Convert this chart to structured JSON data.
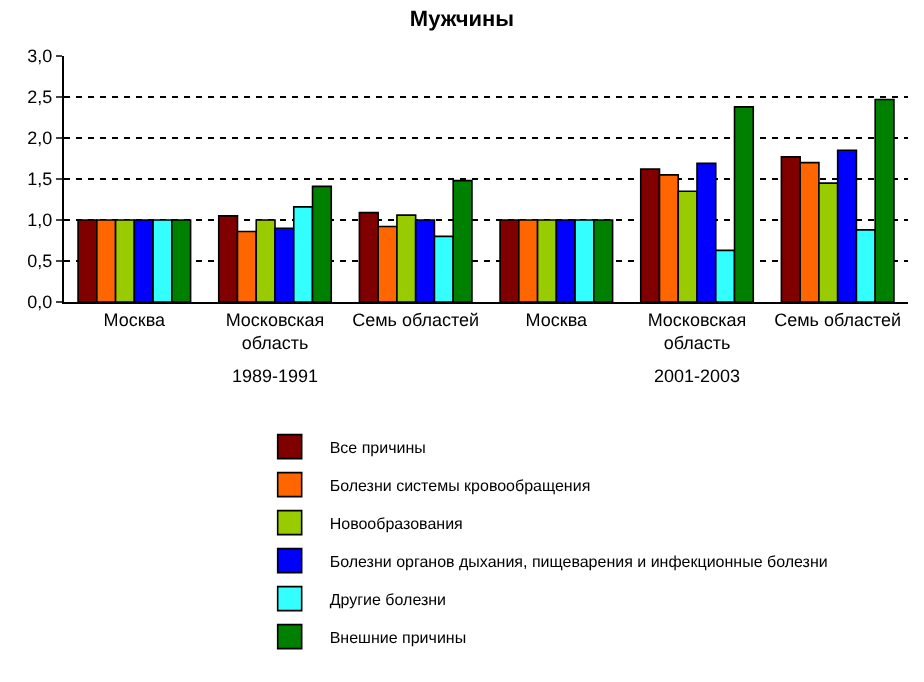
{
  "chart_data": {
    "type": "bar",
    "title": "Мужчины",
    "categories": [
      "Москва",
      "Московская область",
      "Семь областей",
      "Москва",
      "Московская область",
      "Семь областей"
    ],
    "series": [
      {
        "name": "Все причины",
        "color": "#800000",
        "values": [
          1.0,
          1.05,
          1.09,
          1.0,
          1.62,
          1.77
        ]
      },
      {
        "name": "Болезни системы кровообращения",
        "color": "#ff6600",
        "values": [
          1.0,
          0.86,
          0.92,
          1.0,
          1.55,
          1.7
        ]
      },
      {
        "name": "Новообразования",
        "color": "#99cc00",
        "values": [
          1.0,
          1.0,
          1.06,
          1.0,
          1.35,
          1.45
        ]
      },
      {
        "name": "Болезни органов дыхания, пищеварения и инфекционные болезни",
        "color": "#0000ff",
        "values": [
          1.0,
          0.9,
          1.0,
          1.0,
          1.69,
          1.85
        ]
      },
      {
        "name": "Другие болезни",
        "color": "#33ffff",
        "values": [
          1.0,
          1.16,
          0.8,
          1.0,
          0.63,
          0.88
        ]
      },
      {
        "name": "Внешние причины",
        "color": "#008000",
        "values": [
          1.0,
          1.41,
          1.48,
          1.0,
          2.38,
          2.47
        ]
      }
    ],
    "annotations": [
      "1989-1991",
      "2001-2003"
    ],
    "ylim": [
      0,
      3
    ],
    "yticks": [
      {
        "value": 0,
        "label": "0,0"
      },
      {
        "value": 0.5,
        "label": "0,5"
      },
      {
        "value": 1,
        "label": "1,0"
      },
      {
        "value": 1.5,
        "label": "1,5"
      },
      {
        "value": 2,
        "label": "2,0"
      },
      {
        "value": 2.5,
        "label": "2,5"
      },
      {
        "value": 3,
        "label": "3,0"
      }
    ],
    "grid": "y",
    "legend": "bottom"
  }
}
